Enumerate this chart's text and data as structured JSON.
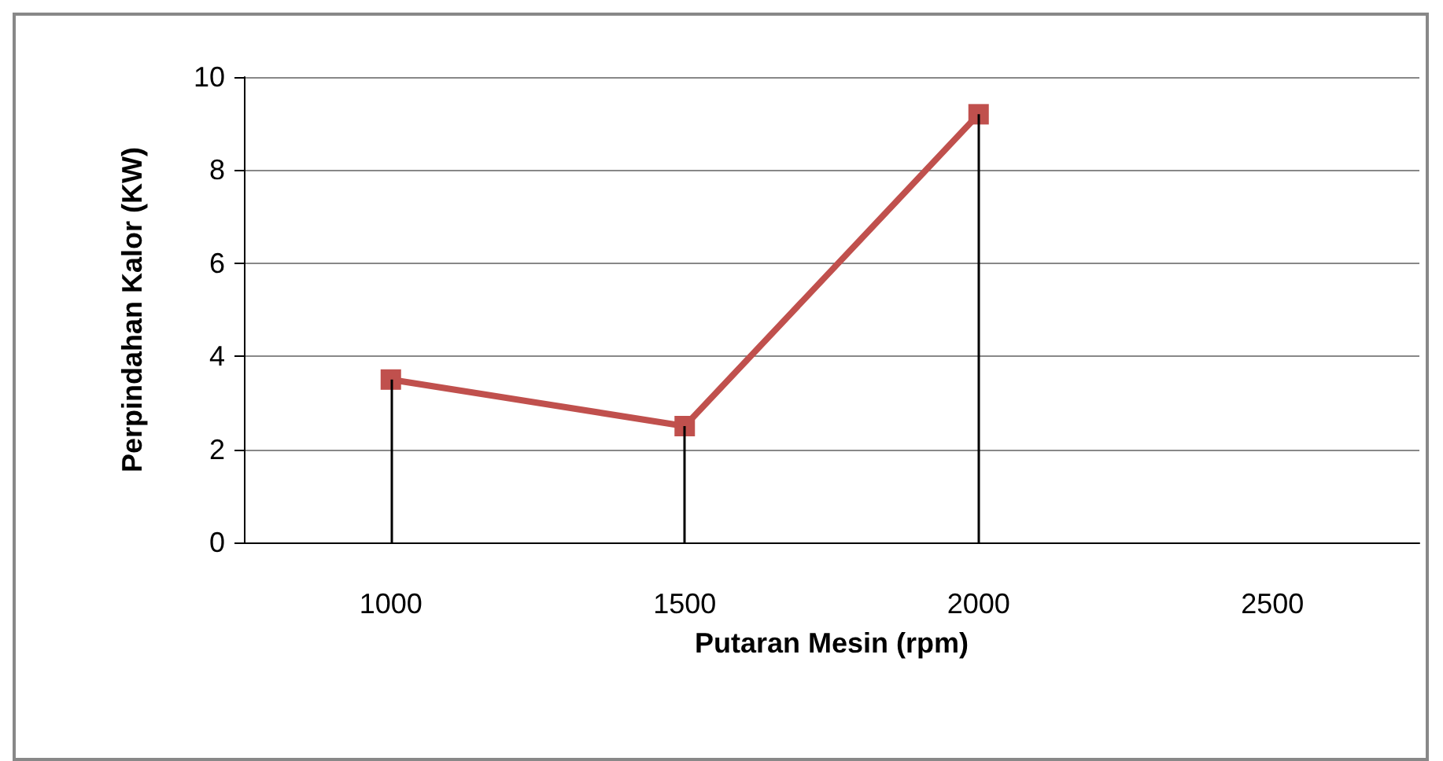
{
  "chart_data": {
    "type": "line",
    "xlabel": "Putaran Mesin (rpm)",
    "ylabel": "Perpindahan Kalor (KW)",
    "categories": [
      "1000",
      "1500",
      "2000",
      "2500"
    ],
    "series": [
      {
        "color": "#c0504d",
        "values": [
          3.5,
          2.5,
          9.2,
          null
        ],
        "errors": [
          [
            0,
            3.5
          ],
          [
            0,
            2.5
          ],
          [
            0,
            9.2
          ],
          null
        ]
      }
    ],
    "ylim": [
      0,
      10
    ],
    "yticks": [
      0,
      2,
      4,
      6,
      8,
      10
    ],
    "grid": "y",
    "marker": "square",
    "line_style": "solid"
  }
}
